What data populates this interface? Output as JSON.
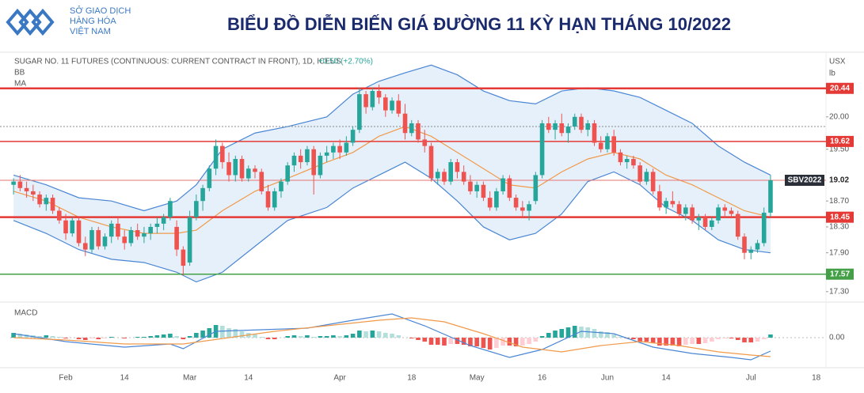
{
  "header": {
    "logo": [
      "SỞ GIAO DỊCH",
      "HÀNG HÓA",
      "VIỆT NAM"
    ],
    "title": "BIỂU ĐỒ DIỄN BIẾN GIÁ ĐƯỜNG 11 KỲ HẠN THÁNG 10/2022"
  },
  "chart_data": [
    {
      "type": "candlestick",
      "title": "SUGAR NO. 11 FUTURES (CONTINUOUS: CURRENT CONTRACT IN FRONT), 1D, ICEUS",
      "change": "+0.50 (+2.70%)",
      "indicators": [
        "BB",
        "MA"
      ],
      "unit": [
        "USX",
        "lb"
      ],
      "xlim": [
        -0.5,
        124.5
      ],
      "xticks": [
        {
          "value": 8,
          "label": "Feb"
        },
        {
          "value": 17,
          "label": "14"
        },
        {
          "value": 27,
          "label": "Mar"
        },
        {
          "value": 36,
          "label": "14"
        },
        {
          "value": 50,
          "label": "Apr"
        },
        {
          "value": 61,
          "label": "18"
        },
        {
          "value": 71,
          "label": "May"
        },
        {
          "value": 81,
          "label": "16"
        },
        {
          "value": 91,
          "label": "Jun"
        },
        {
          "value": 100,
          "label": "14"
        },
        {
          "value": 113,
          "label": "Jul"
        },
        {
          "value": 123,
          "label": "18"
        }
      ],
      "ylim": [
        17.2,
        20.95
      ],
      "yticks": [
        {
          "value": 17.3,
          "label": "17.30"
        },
        {
          "value": 17.9,
          "label": "17.90"
        },
        {
          "value": 18.3,
          "label": "18.30"
        },
        {
          "value": 18.7,
          "label": "18.70"
        },
        {
          "value": 19.5,
          "label": "19.50"
        },
        {
          "value": 20,
          "label": "20.00"
        }
      ],
      "up_color": "#26a69a",
      "down_color": "#ef5350",
      "candles": [
        [
          18.95,
          19.05,
          18.8,
          19.0
        ],
        [
          19.0,
          19.1,
          18.85,
          18.9
        ],
        [
          18.9,
          19.0,
          18.75,
          18.85
        ],
        [
          18.85,
          18.95,
          18.7,
          18.8
        ],
        [
          18.8,
          18.85,
          18.6,
          18.65
        ],
        [
          18.65,
          18.8,
          18.55,
          18.75
        ],
        [
          18.75,
          18.8,
          18.5,
          18.55
        ],
        [
          18.55,
          18.6,
          18.35,
          18.4
        ],
        [
          18.4,
          18.5,
          18.1,
          18.2
        ],
        [
          18.2,
          18.45,
          18.15,
          18.4
        ],
        [
          18.4,
          18.45,
          18.0,
          18.05
        ],
        [
          18.05,
          18.15,
          17.85,
          17.95
        ],
        [
          17.95,
          18.3,
          17.9,
          18.25
        ],
        [
          18.25,
          18.3,
          17.95,
          18.0
        ],
        [
          18.0,
          18.2,
          17.95,
          18.15
        ],
        [
          18.15,
          18.4,
          18.05,
          18.35
        ],
        [
          18.35,
          18.45,
          18.1,
          18.15
        ],
        [
          18.15,
          18.25,
          17.95,
          18.05
        ],
        [
          18.05,
          18.3,
          18.0,
          18.25
        ],
        [
          18.25,
          18.35,
          18.1,
          18.15
        ],
        [
          18.15,
          18.3,
          18.05,
          18.2
        ],
        [
          18.2,
          18.35,
          18.1,
          18.3
        ],
        [
          18.3,
          18.45,
          18.2,
          18.35
        ],
        [
          18.35,
          18.5,
          18.25,
          18.45
        ],
        [
          18.45,
          18.75,
          18.4,
          18.7
        ],
        [
          18.3,
          18.4,
          17.85,
          17.95
        ],
        [
          17.95,
          18.0,
          17.55,
          17.7
        ],
        [
          17.75,
          18.55,
          17.7,
          18.45
        ],
        [
          18.45,
          18.8,
          18.4,
          18.7
        ],
        [
          18.7,
          18.95,
          18.55,
          18.9
        ],
        [
          18.9,
          19.25,
          18.85,
          19.2
        ],
        [
          19.2,
          19.65,
          19.1,
          19.55
        ],
        [
          19.55,
          19.6,
          19.2,
          19.3
        ],
        [
          19.3,
          19.45,
          19.0,
          19.1
        ],
        [
          19.1,
          19.4,
          19.0,
          19.35
        ],
        [
          19.35,
          19.4,
          19.0,
          19.05
        ],
        [
          19.05,
          19.25,
          19.0,
          19.2
        ],
        [
          19.2,
          19.25,
          19.05,
          19.15
        ],
        [
          19.15,
          19.2,
          18.8,
          18.85
        ],
        [
          18.85,
          18.95,
          18.55,
          18.6
        ],
        [
          18.6,
          18.9,
          18.55,
          18.85
        ],
        [
          18.85,
          19.05,
          18.75,
          19.0
        ],
        [
          19.0,
          19.3,
          18.95,
          19.25
        ],
        [
          19.25,
          19.45,
          19.15,
          19.4
        ],
        [
          19.4,
          19.5,
          19.2,
          19.3
        ],
        [
          19.3,
          19.55,
          19.25,
          19.5
        ],
        [
          19.5,
          19.55,
          18.8,
          19.1
        ],
        [
          19.1,
          19.45,
          19.05,
          19.4
        ],
        [
          19.4,
          19.55,
          19.3,
          19.45
        ],
        [
          19.45,
          19.6,
          19.35,
          19.55
        ],
        [
          19.55,
          19.65,
          19.35,
          19.45
        ],
        [
          19.45,
          19.7,
          19.4,
          19.6
        ],
        [
          19.6,
          19.85,
          19.55,
          19.8
        ],
        [
          19.8,
          20.45,
          19.75,
          20.35
        ],
        [
          20.35,
          20.4,
          20.05,
          20.15
        ],
        [
          20.15,
          20.45,
          20.1,
          20.4
        ],
        [
          20.4,
          20.5,
          20.2,
          20.3
        ],
        [
          20.3,
          20.35,
          20.0,
          20.1
        ],
        [
          20.1,
          20.3,
          20.05,
          20.25
        ],
        [
          20.25,
          20.35,
          20.0,
          20.05
        ],
        [
          20.05,
          20.2,
          19.65,
          19.75
        ],
        [
          19.75,
          19.95,
          19.7,
          19.9
        ],
        [
          19.9,
          19.95,
          19.6,
          19.65
        ],
        [
          19.65,
          19.8,
          19.45,
          19.55
        ],
        [
          19.55,
          19.6,
          19.0,
          19.05
        ],
        [
          19.05,
          19.2,
          18.95,
          19.15
        ],
        [
          19.15,
          19.2,
          18.95,
          19.0
        ],
        [
          19.0,
          19.35,
          18.95,
          19.3
        ],
        [
          19.3,
          19.35,
          19.05,
          19.15
        ],
        [
          19.15,
          19.25,
          18.95,
          19.0
        ],
        [
          19.0,
          19.1,
          18.8,
          18.85
        ],
        [
          18.85,
          19.0,
          18.75,
          18.95
        ],
        [
          18.95,
          19.0,
          18.7,
          18.75
        ],
        [
          18.75,
          18.85,
          18.55,
          18.6
        ],
        [
          18.6,
          18.9,
          18.55,
          18.85
        ],
        [
          18.85,
          19.1,
          18.8,
          19.05
        ],
        [
          19.05,
          19.1,
          18.7,
          18.75
        ],
        [
          18.75,
          18.8,
          18.55,
          18.6
        ],
        [
          18.6,
          18.7,
          18.45,
          18.55
        ],
        [
          18.55,
          18.7,
          18.4,
          18.65
        ],
        [
          18.7,
          19.15,
          18.65,
          19.1
        ],
        [
          19.1,
          19.95,
          19.05,
          19.9
        ],
        [
          19.9,
          20.0,
          19.75,
          19.8
        ],
        [
          19.8,
          19.95,
          19.65,
          19.9
        ],
        [
          19.9,
          20.05,
          19.7,
          19.75
        ],
        [
          19.75,
          19.9,
          19.6,
          19.85
        ],
        [
          19.85,
          20.05,
          19.8,
          20.0
        ],
        [
          20.0,
          20.05,
          19.75,
          19.8
        ],
        [
          19.8,
          19.95,
          19.7,
          19.9
        ],
        [
          19.9,
          19.95,
          19.55,
          19.6
        ],
        [
          19.6,
          19.7,
          19.45,
          19.5
        ],
        [
          19.5,
          19.75,
          19.45,
          19.7
        ],
        [
          19.7,
          19.8,
          19.4,
          19.45
        ],
        [
          19.45,
          19.5,
          19.25,
          19.3
        ],
        [
          19.3,
          19.4,
          19.2,
          19.35
        ],
        [
          19.35,
          19.4,
          19.2,
          19.25
        ],
        [
          19.25,
          19.3,
          18.95,
          19.0
        ],
        [
          19.0,
          19.2,
          18.95,
          19.15
        ],
        [
          19.15,
          19.2,
          18.8,
          18.85
        ],
        [
          18.85,
          18.95,
          18.55,
          18.6
        ],
        [
          18.6,
          18.75,
          18.5,
          18.7
        ],
        [
          18.7,
          18.85,
          18.6,
          18.65
        ],
        [
          18.65,
          18.7,
          18.45,
          18.5
        ],
        [
          18.5,
          18.65,
          18.4,
          18.6
        ],
        [
          18.6,
          18.65,
          18.35,
          18.4
        ],
        [
          18.4,
          18.5,
          18.25,
          18.45
        ],
        [
          18.45,
          18.5,
          18.25,
          18.3
        ],
        [
          18.3,
          18.45,
          18.25,
          18.4
        ],
        [
          18.4,
          18.65,
          18.35,
          18.6
        ],
        [
          18.6,
          18.65,
          18.45,
          18.55
        ],
        [
          18.55,
          18.6,
          18.45,
          18.5
        ],
        [
          18.5,
          18.55,
          18.1,
          18.15
        ],
        [
          18.15,
          18.2,
          17.8,
          17.9
        ],
        [
          17.9,
          18.0,
          17.8,
          17.95
        ],
        [
          17.95,
          18.1,
          17.9,
          18.05
        ],
        [
          18.05,
          18.6,
          18.0,
          18.52
        ],
        [
          18.52,
          19.1,
          18.45,
          19.02
        ]
      ],
      "bb": {
        "color": "#4a86d4",
        "fill": "#e6f0fa",
        "x": [
          0,
          5,
          10,
          15,
          20,
          25,
          28,
          32,
          37,
          42,
          48,
          52,
          56,
          60,
          64,
          68,
          72,
          76,
          80,
          84,
          88,
          92,
          96,
          100,
          104,
          108,
          112,
          116
        ],
        "upper": [
          19.1,
          18.95,
          18.75,
          18.7,
          18.55,
          18.7,
          18.95,
          19.5,
          19.75,
          19.85,
          20.0,
          20.35,
          20.55,
          20.68,
          20.8,
          20.65,
          20.4,
          20.25,
          20.2,
          20.4,
          20.45,
          20.4,
          20.3,
          20.1,
          19.9,
          19.55,
          19.3,
          19.1
        ],
        "lower": [
          18.4,
          18.2,
          17.95,
          17.8,
          17.75,
          17.6,
          17.45,
          17.6,
          18.0,
          18.4,
          18.6,
          18.9,
          19.1,
          19.3,
          19.05,
          18.7,
          18.3,
          18.1,
          18.2,
          18.5,
          19.0,
          19.15,
          18.95,
          18.6,
          18.4,
          18.1,
          17.95,
          17.9
        ]
      },
      "ma": {
        "color": "#f09a4a",
        "x": [
          0,
          5,
          10,
          15,
          20,
          25,
          28,
          32,
          37,
          42,
          48,
          52,
          56,
          60,
          64,
          68,
          72,
          76,
          80,
          84,
          88,
          92,
          96,
          100,
          104,
          108,
          112,
          116
        ],
        "values": [
          18.85,
          18.7,
          18.45,
          18.3,
          18.2,
          18.2,
          18.25,
          18.55,
          18.85,
          19.05,
          19.3,
          19.45,
          19.7,
          19.85,
          19.7,
          19.45,
          19.2,
          18.95,
          18.9,
          19.15,
          19.35,
          19.45,
          19.35,
          19.1,
          18.95,
          18.75,
          18.55,
          18.45
        ]
      },
      "levels": [
        {
          "value": 20.44,
          "color": "#e53935",
          "width": 2.5,
          "box": true
        },
        {
          "value": 19.85,
          "color": "#888888",
          "width": 1,
          "box": false
        },
        {
          "value": 19.62,
          "color": "#e53935",
          "width": 1.5,
          "box": true
        },
        {
          "value": 19.02,
          "color": "#e57373",
          "width": 1,
          "box": false,
          "tag": "SBV2022"
        },
        {
          "value": 18.45,
          "color": "#e53935",
          "width": 2.5,
          "box": true
        },
        {
          "value": 17.57,
          "color": "#43a047",
          "width": 1.5,
          "box": true
        }
      ]
    },
    {
      "type": "macd",
      "title": "MACD",
      "xlim": [
        -0.5,
        124.5
      ],
      "ylim": [
        -0.35,
        0.35
      ],
      "yticks": [
        {
          "value": 0,
          "label": "0.00"
        }
      ],
      "colors": {
        "up_strong": "#26a69a",
        "up_weak": "#b2dfdb",
        "down_strong": "#ef5350",
        "down_weak": "#ffcdd2"
      },
      "histogram": [
        0.06,
        0.05,
        0.04,
        0.03,
        0.02,
        0.03,
        0.02,
        0.01,
        -0.01,
        0.0,
        -0.02,
        -0.03,
        -0.01,
        -0.02,
        -0.01,
        0.01,
        0.0,
        -0.01,
        0.0,
        0.01,
        0.01,
        0.02,
        0.03,
        0.04,
        0.05,
        0.02,
        -0.02,
        0.02,
        0.06,
        0.09,
        0.12,
        0.16,
        0.15,
        0.12,
        0.11,
        0.08,
        0.06,
        0.04,
        0.01,
        -0.02,
        -0.02,
        0.0,
        0.02,
        0.03,
        0.02,
        0.03,
        0.01,
        0.02,
        0.02,
        0.03,
        0.02,
        0.03,
        0.05,
        0.09,
        0.08,
        0.09,
        0.08,
        0.06,
        0.05,
        0.03,
        0.0,
        -0.01,
        -0.03,
        -0.05,
        -0.09,
        -0.09,
        -0.1,
        -0.08,
        -0.08,
        -0.09,
        -0.11,
        -0.11,
        -0.13,
        -0.15,
        -0.13,
        -0.1,
        -0.1,
        -0.11,
        -0.1,
        -0.08,
        -0.05,
        0.02,
        0.06,
        0.09,
        0.11,
        0.13,
        0.15,
        0.14,
        0.13,
        0.11,
        0.08,
        0.07,
        0.04,
        0.01,
        -0.01,
        -0.02,
        -0.05,
        -0.05,
        -0.07,
        -0.1,
        -0.1,
        -0.1,
        -0.11,
        -0.09,
        -0.08,
        -0.08,
        -0.07,
        -0.05,
        -0.02,
        -0.01,
        -0.01,
        -0.03,
        -0.06,
        -0.06,
        -0.05,
        -0.02,
        0.04
      ],
      "lines": [
        {
          "color": "#4a86d4",
          "x": [
            0,
            8,
            17,
            24,
            26,
            31,
            38,
            45,
            52,
            58,
            63,
            70,
            76,
            81,
            87,
            92,
            98,
            104,
            110,
            113,
            116
          ],
          "values": [
            0.05,
            -0.05,
            -0.12,
            -0.08,
            -0.14,
            0.08,
            0.1,
            0.12,
            0.22,
            0.3,
            0.15,
            -0.1,
            -0.25,
            -0.15,
            0.08,
            0.05,
            -0.12,
            -0.2,
            -0.25,
            -0.28,
            -0.17
          ]
        },
        {
          "color": "#f09a4a",
          "x": [
            0,
            8,
            17,
            26,
            33,
            40,
            48,
            56,
            61,
            66,
            72,
            78,
            84,
            90,
            96,
            102,
            108,
            113,
            116
          ],
          "values": [
            0.0,
            -0.03,
            -0.08,
            -0.08,
            0.0,
            0.08,
            0.15,
            0.22,
            0.25,
            0.2,
            0.05,
            -0.12,
            -0.18,
            -0.1,
            -0.05,
            -0.1,
            -0.18,
            -0.22,
            -0.24
          ]
        }
      ]
    }
  ]
}
